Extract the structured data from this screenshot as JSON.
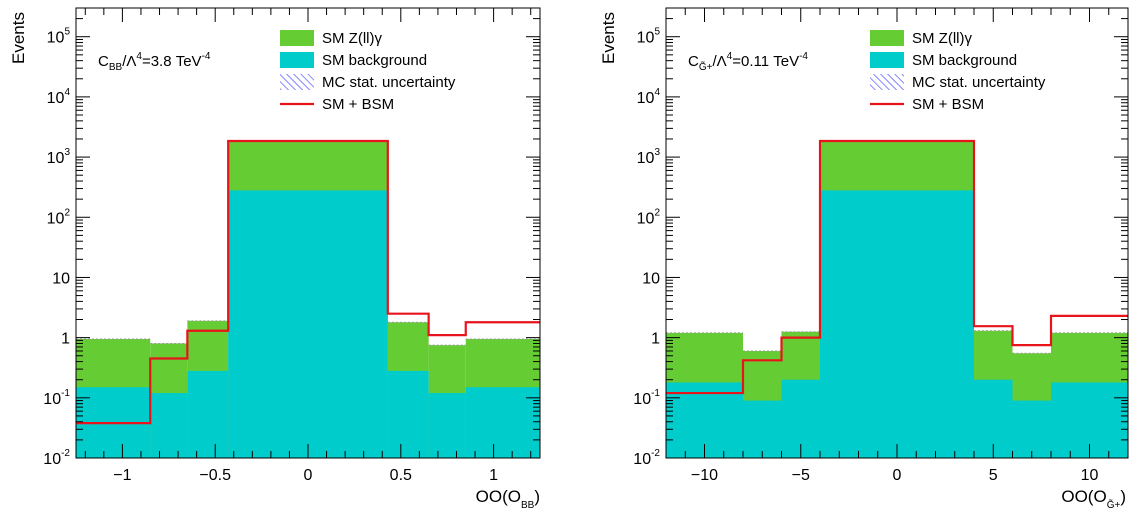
{
  "chart_data": [
    {
      "type": "histogram",
      "ylabel": "Events",
      "yscale": "log",
      "ylim": [
        0.01,
        300000
      ],
      "xlim": [
        -1.25,
        1.25
      ],
      "xlabel": "OO(O",
      "xlabel_sub": "BB",
      "xlabel_close": ")",
      "x_ticks": [
        -1,
        -0.5,
        0,
        0.5,
        1
      ],
      "x_tick_labels": [
        "−1",
        "−0.5",
        "0",
        "0.5",
        "1"
      ],
      "annotation": {
        "c": "C",
        "c_sub": "BB",
        "slash_lambda": "/Λ",
        "lambda_sup": "4",
        "value": "=3.8 TeV",
        "unit_sup": "-4"
      },
      "bin_edges": [
        -1.25,
        -0.85,
        -0.65,
        -0.43,
        0.0,
        0.43,
        0.65,
        0.85,
        1.25
      ],
      "series": [
        {
          "name": "SM background",
          "values": [
            0.15,
            0.12,
            0.28,
            280,
            280,
            0.28,
            0.12,
            0.15
          ],
          "color": "#00cccc"
        },
        {
          "name": "SM Z(ll)γ (stack total)",
          "values": [
            0.95,
            0.8,
            1.9,
            1800,
            1800,
            1.8,
            0.75,
            0.95
          ],
          "color": "#66cc33"
        },
        {
          "name": "SM + BSM",
          "values": [
            0.038,
            0.45,
            1.3,
            1850,
            1850,
            2.5,
            1.1,
            1.8
          ],
          "color": "#e8141c"
        }
      ]
    },
    {
      "type": "histogram",
      "ylabel": "Events",
      "yscale": "log",
      "ylim": [
        0.01,
        300000
      ],
      "xlim": [
        -12,
        12
      ],
      "xlabel": "OO(O",
      "xlabel_sub": "G̃+",
      "xlabel_close": ")",
      "x_ticks": [
        -10,
        -5,
        0,
        5,
        10
      ],
      "x_tick_labels": [
        "−10",
        "−5",
        "0",
        "5",
        "10"
      ],
      "annotation": {
        "c": "C",
        "c_sub": "G̃+",
        "slash_lambda": "/Λ",
        "lambda_sup": "4",
        "value": "=0.11 TeV",
        "unit_sup": "-4"
      },
      "bin_edges": [
        -12,
        -8,
        -6,
        -4,
        0,
        4,
        6,
        8,
        12
      ],
      "series": [
        {
          "name": "SM background",
          "values": [
            0.18,
            0.09,
            0.2,
            280,
            280,
            0.2,
            0.09,
            0.18
          ],
          "color": "#00cccc"
        },
        {
          "name": "SM Z(ll)γ (stack total)",
          "values": [
            1.2,
            0.6,
            1.25,
            1800,
            1800,
            1.3,
            0.55,
            1.2
          ],
          "color": "#66cc33"
        },
        {
          "name": "SM + BSM",
          "values": [
            0.12,
            0.42,
            1.0,
            1850,
            1850,
            1.55,
            0.75,
            2.3
          ],
          "color": "#e8141c"
        }
      ]
    }
  ],
  "legend": {
    "items": [
      {
        "label": "SM Z(ll)γ",
        "kind": "fill",
        "color": "#66cc33"
      },
      {
        "label": "SM background",
        "kind": "fill",
        "color": "#00cccc"
      },
      {
        "label": "MC stat. uncertainty",
        "kind": "hatch",
        "color": "#3a3aff"
      },
      {
        "label": "SM + BSM",
        "kind": "line",
        "color": "#e8141c"
      }
    ]
  },
  "y_tick_labels": {
    "major": [
      {
        "base": "10",
        "exp": "-2",
        "value": 0.01
      },
      {
        "base": "10",
        "exp": "-1",
        "value": 0.1
      },
      {
        "base": "1",
        "exp": "",
        "value": 1
      },
      {
        "base": "10",
        "exp": "",
        "value": 10
      },
      {
        "base": "10",
        "exp": "2",
        "value": 100
      },
      {
        "base": "10",
        "exp": "3",
        "value": 1000
      },
      {
        "base": "10",
        "exp": "4",
        "value": 10000
      },
      {
        "base": "10",
        "exp": "5",
        "value": 100000
      }
    ]
  }
}
